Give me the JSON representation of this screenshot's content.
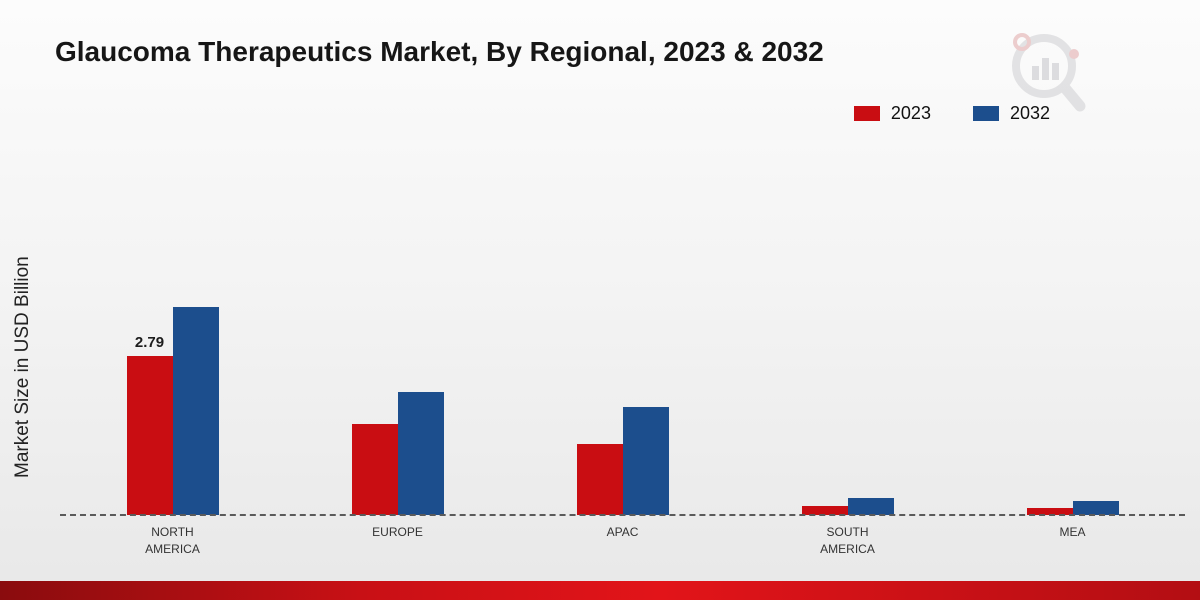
{
  "title": "Glaucoma Therapeutics Market, By Regional, 2023 & 2032",
  "ylabel": "Market Size in USD Billion",
  "colors": {
    "series_2023": "#c90d12",
    "series_2032": "#1c4e8d",
    "footer_red": "#c8101 5"
  },
  "chart_data": {
    "type": "bar",
    "title": "Glaucoma Therapeutics Market, By Regional, 2023 & 2032",
    "xlabel": "",
    "ylabel": "Market Size in USD Billion",
    "categories": [
      "NORTH AMERICA",
      "EUROPE",
      "APAC",
      "SOUTH AMERICA",
      "MEA"
    ],
    "series": [
      {
        "name": "2023",
        "color": "#c90d12",
        "values": [
          2.79,
          1.6,
          1.25,
          0.15,
          0.12
        ],
        "labels": [
          "2.79",
          "",
          "",
          "",
          ""
        ]
      },
      {
        "name": "2032",
        "color": "#1c4e8d",
        "values": [
          3.65,
          2.15,
          1.9,
          0.3,
          0.25
        ],
        "labels": [
          "",
          "",
          "",
          "",
          ""
        ]
      }
    ],
    "ylim": [
      0,
      4
    ],
    "grid": false,
    "legend_position": "top-right",
    "baseline_style": "dashed",
    "annotations": [
      {
        "series": "2023",
        "category": "NORTH AMERICA",
        "text": "2.79"
      }
    ]
  }
}
